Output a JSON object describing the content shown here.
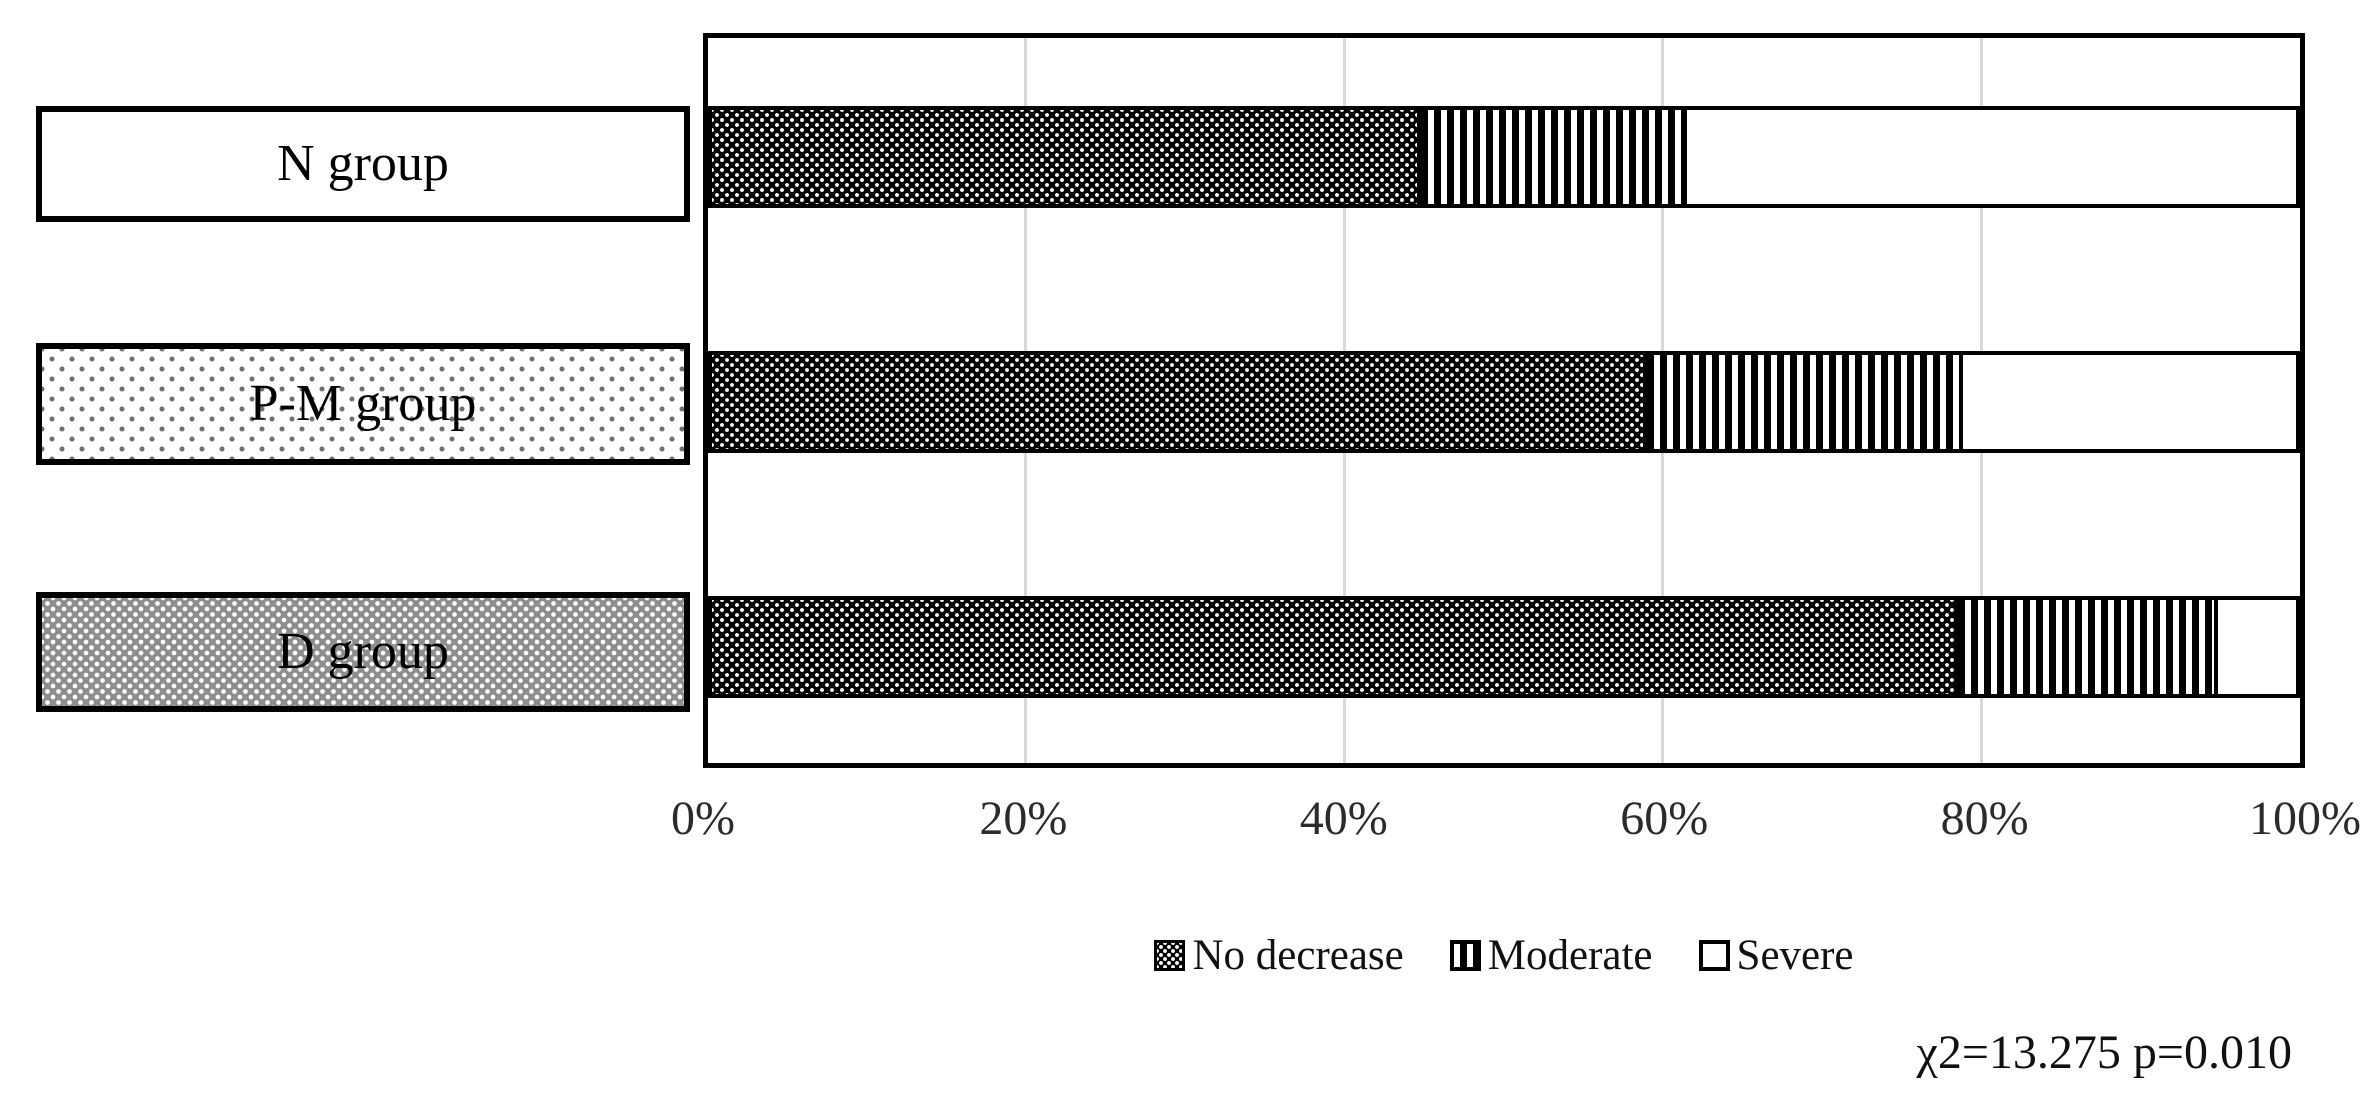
{
  "chart_data": {
    "type": "bar",
    "orientation": "horizontal_stacked",
    "unit": "percent",
    "categories": [
      {
        "label": "N group",
        "box_pattern": "white"
      },
      {
        "label": "P-M group",
        "box_pattern": "light-dots"
      },
      {
        "label": "D group",
        "box_pattern": "gray-dots"
      }
    ],
    "series": [
      {
        "name": "No decrease",
        "pattern": "dense-black-dots",
        "values": [
          44.5,
          58.8,
          78.4
        ]
      },
      {
        "name": "Moderate",
        "pattern": "vertical-stripes",
        "values": [
          16.8,
          19.9,
          16.4
        ]
      },
      {
        "name": "Severe",
        "pattern": "white",
        "values": [
          38.7,
          21.3,
          5.2
        ]
      }
    ],
    "x_ticks": [
      "0%",
      "20%",
      "40%",
      "60%",
      "80%",
      "100%"
    ],
    "xlim": [
      0,
      100
    ],
    "gridlines": "vertical major every 20%",
    "legend_position": "bottom-center",
    "annotation": "χ2=13.275 p=0.010"
  },
  "colors": {
    "background": "#ffffff",
    "bar_outline": "#000000",
    "gridline": "#d9d9d9",
    "text": "#1a1a1a",
    "gray_box_fill": "#8e8e8e"
  }
}
